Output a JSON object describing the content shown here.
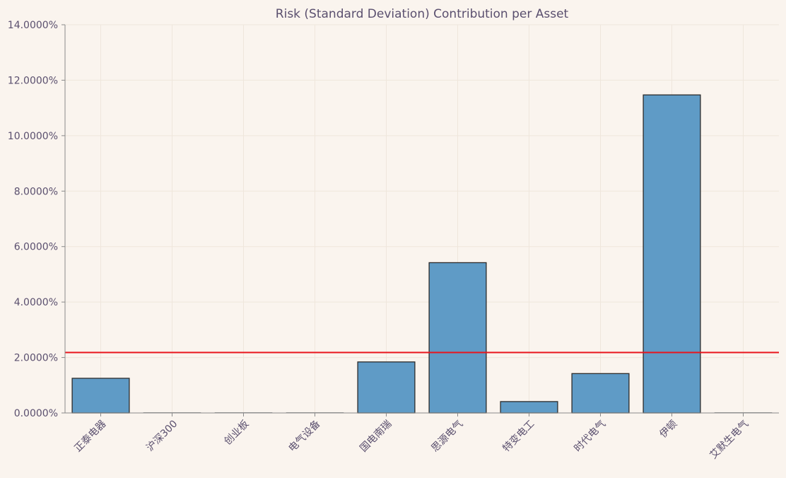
{
  "chart_data": {
    "type": "bar",
    "title": "Risk (Standard Deviation) Contribution per Asset",
    "xlabel": "",
    "ylabel": "",
    "categories": [
      "正泰电器",
      "沪深300",
      "创业板",
      "电气设备",
      "国电南瑞",
      "思源电气",
      "特变电工",
      "时代电气",
      "伊顿",
      "艾默生电气"
    ],
    "values": [
      1.25,
      0.0,
      0.0,
      0.0,
      1.84,
      5.42,
      0.41,
      1.42,
      11.47,
      0.0
    ],
    "value_unit": "%",
    "ylim": [
      0,
      14
    ],
    "yticks": [
      "0.0000%",
      "2.0000%",
      "4.0000%",
      "6.0000%",
      "8.0000%",
      "10.0000%",
      "12.0000%",
      "14.0000%"
    ],
    "reference_line": {
      "value": 2.18,
      "color": "#e8141c"
    },
    "grid": true,
    "colors": {
      "bar_fill": "#5f9bc6",
      "bar_stroke": "#2b2b2b",
      "background": "#faf4ee",
      "grid": "#efe6dc",
      "axis": "#8a8a8a",
      "text": "#5a4f6e"
    }
  }
}
